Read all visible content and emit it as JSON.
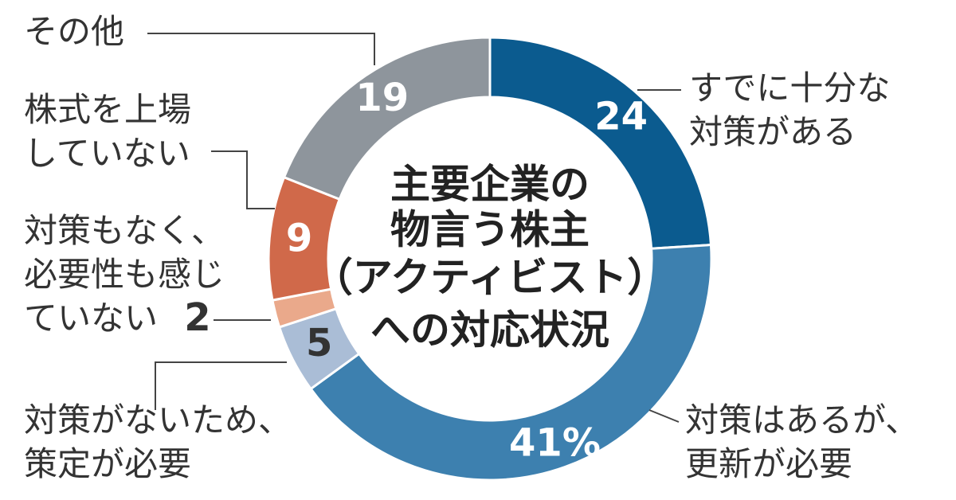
{
  "chart_data": {
    "type": "donut",
    "title": [
      "主要企業の",
      "物言う株主",
      "（アクティビスト）",
      "への対応状況"
    ],
    "categories": [
      "すでに十分な\n対策がある",
      "対策はあるが、\n更新が必要",
      "対策がないため、\n策定が必要",
      "対策もなく、\n必要性も感じ\nていない",
      "株式を上場\nしていない",
      "その他"
    ],
    "values": [
      24,
      41,
      5,
      2,
      9,
      19
    ],
    "value_labels": [
      "24",
      "41%",
      "5",
      "2",
      "9",
      "19"
    ],
    "colors": [
      "#0b5b8f",
      "#3d80af",
      "#aabdd6",
      "#eaa98b",
      "#d0694a",
      "#8e959c"
    ]
  }
}
